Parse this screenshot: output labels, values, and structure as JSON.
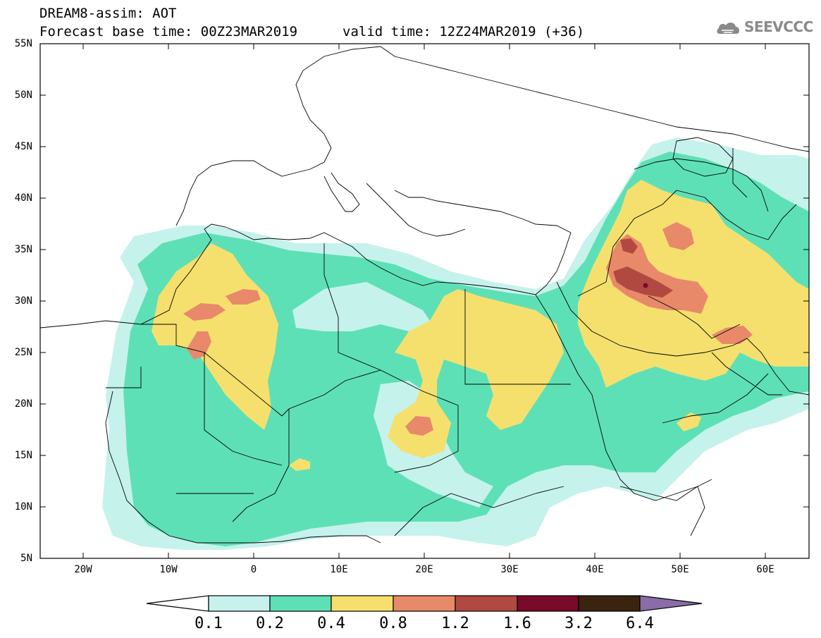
{
  "header": {
    "title_line1": "DREAM8-assim: AOT",
    "title_line2": "Forecast base time: 00Z23MAR2019",
    "valid_time": "valid time: 12Z24MAR2019 (+36)",
    "logo_text": "SEEVCCC"
  },
  "map": {
    "lat_labels": [
      "55N",
      "50N",
      "45N",
      "40N",
      "35N",
      "30N",
      "25N",
      "20N",
      "15N",
      "10N",
      "5N"
    ],
    "lon_labels": [
      "20W",
      "10W",
      "0",
      "10E",
      "20E",
      "30E",
      "40E",
      "50E",
      "60E"
    ],
    "lon_range": [
      -25,
      65
    ],
    "lat_range": [
      5,
      55
    ]
  },
  "colorbar": {
    "labels": [
      "0.1",
      "0.2",
      "0.4",
      "0.8",
      "1.2",
      "1.6",
      "3.2",
      "6.4"
    ],
    "colors": [
      "#c6f2ec",
      "#5ee0b6",
      "#f5e06e",
      "#e8896a",
      "#b04a40",
      "#7a0a2a",
      "#3a2410",
      "#8a6ca8"
    ]
  }
}
